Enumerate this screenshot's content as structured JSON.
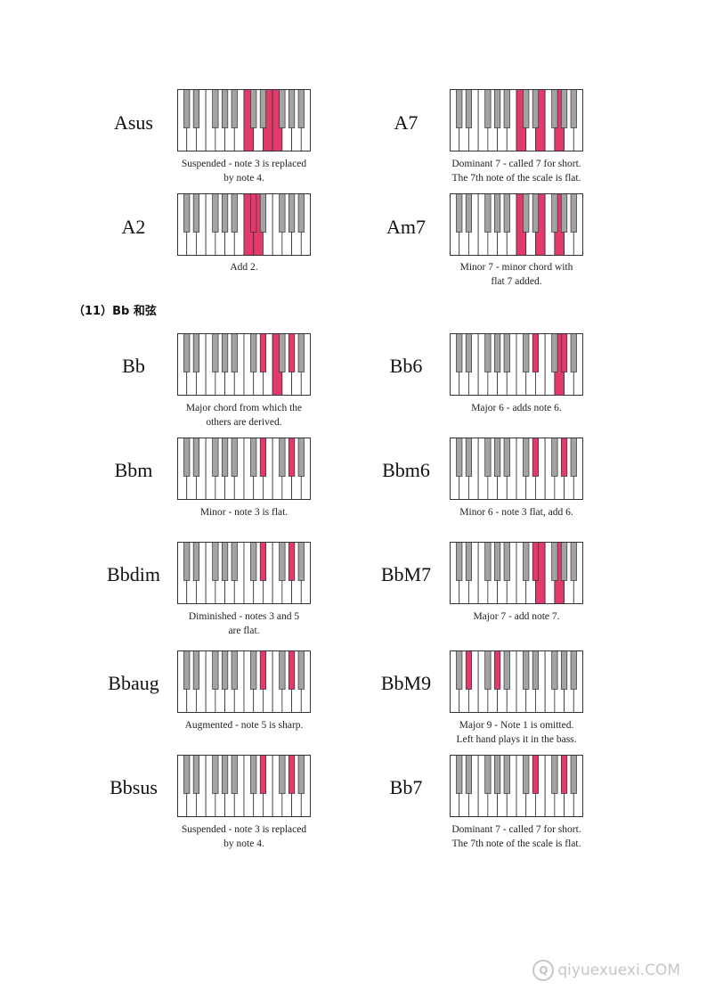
{
  "section_heading": "（11）Bb 和弦",
  "colors": {
    "highlight": "#e23a6a",
    "black_key": "#a3a3a3",
    "white_key": "#ffffff",
    "outline": "#333333"
  },
  "chords": [
    {
      "name": "Asus",
      "white": [
        7,
        9,
        10
      ],
      "black": [],
      "caption": "Suspended - note 3 is replaced\nby note 4."
    },
    {
      "name": "A7",
      "white": [
        7,
        9,
        11
      ],
      "black": [],
      "caption": "Dominant 7 - called 7 for short.\nThe 7th note of the scale is flat."
    },
    {
      "name": "A2",
      "white": [
        7,
        8
      ],
      "black": [
        5
      ],
      "caption": "Add 2."
    },
    {
      "name": "Am7",
      "white": [
        7,
        9,
        11
      ],
      "black": [],
      "caption": "Minor 7 - minor chord with\nflat 7 added."
    },
    {
      "name": "Bb",
      "white": [
        10
      ],
      "black": [
        6,
        8
      ],
      "caption": "Major chord from which the\nothers are derived."
    },
    {
      "name": "Bb6",
      "white": [
        11
      ],
      "black": [
        6,
        8
      ],
      "caption": "Major 6 - adds note 6."
    },
    {
      "name": "Bbm",
      "white": [],
      "black": [
        6,
        8
      ],
      "caption": "Minor - note 3 is flat."
    },
    {
      "name": "Bbm6",
      "white": [],
      "black": [
        6,
        8
      ],
      "caption": "Minor 6 - note 3 flat, add 6."
    },
    {
      "name": "Bbdim",
      "white": [],
      "black": [
        6,
        8
      ],
      "caption": "Diminished - notes 3 and 5\nare flat."
    },
    {
      "name": "BbM7",
      "white": [
        9,
        11
      ],
      "black": [
        6
      ],
      "caption": "Major 7 - add note 7."
    },
    {
      "name": "Bbaug",
      "white": [],
      "black": [
        6,
        8
      ],
      "caption": "Augmented - note 5 is sharp."
    },
    {
      "name": "BbM9",
      "white": [],
      "black": [
        1,
        3
      ],
      "caption": "Major 9 - Note 1 is omitted.\nLeft hand plays it in the bass."
    },
    {
      "name": "Bbsus",
      "white": [],
      "black": [
        6,
        8
      ],
      "caption": "Suspended - note 3 is replaced\nby note 4."
    },
    {
      "name": "Bb7",
      "white": [],
      "black": [
        6,
        8
      ],
      "caption": "Dominant 7 - called 7 for short.\nThe 7th note of the scale is flat."
    }
  ],
  "watermark": {
    "icon_glyph": "Q",
    "text": "qiyuexuexi.COM"
  }
}
